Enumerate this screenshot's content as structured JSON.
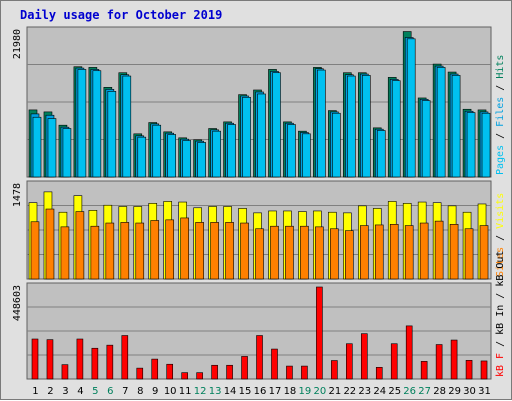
{
  "chart_data": {
    "type": "bar",
    "title": "Daily usage for October 2019",
    "categories": [
      "1",
      "2",
      "3",
      "4",
      "5",
      "6",
      "7",
      "8",
      "9",
      "10",
      "11",
      "12",
      "13",
      "14",
      "15",
      "16",
      "17",
      "18",
      "19",
      "20",
      "21",
      "22",
      "23",
      "24",
      "25",
      "26",
      "27",
      "28",
      "29",
      "30",
      "31"
    ],
    "weekend_days": [
      "5",
      "6",
      "12",
      "13",
      "19",
      "20",
      "26",
      "27"
    ],
    "panels": [
      {
        "id": "hits",
        "ymax_label": "21980",
        "ymax": 21980,
        "y_axis_labels": [
          "Pages",
          "Files",
          "Hits"
        ],
        "series": [
          {
            "name": "Hits",
            "color": "#00805c",
            "values": [
              10100,
              9800,
              7800,
              16600,
              16500,
              13500,
              15700,
              6500,
              8200,
              6800,
              5900,
              5600,
              7300,
              8300,
              12400,
              13100,
              16200,
              8300,
              6900,
              16500,
              10000,
              15700,
              15700,
              7400,
              15000,
              21900,
              11900,
              17000,
              15800,
              10200,
              10100
            ]
          },
          {
            "name": "Files",
            "color": "#00a0e0",
            "values": [
              9500,
              9300,
              7500,
              16400,
              16200,
              13200,
              15400,
              6200,
              8000,
              6600,
              5700,
              5400,
              7100,
              8100,
              12200,
              12800,
              15900,
              8100,
              6700,
              16300,
              9800,
              15400,
              15500,
              7200,
              14700,
              21000,
              11700,
              16700,
              15500,
              9900,
              9800
            ]
          },
          {
            "name": "Pages",
            "color": "#00c0f0",
            "values": [
              9000,
              8800,
              7300,
              16200,
              16000,
              12900,
              15200,
              6000,
              7800,
              6400,
              5500,
              5200,
              6900,
              7900,
              12000,
              12500,
              15700,
              7900,
              6500,
              16100,
              9600,
              15200,
              15300,
              7000,
              14500,
              20800,
              11500,
              16500,
              15300,
              9700,
              9600
            ]
          }
        ]
      },
      {
        "id": "visits",
        "ymax_label": "1478",
        "ymax": 1478,
        "y_axis_labels": [
          "Sites",
          "Visits"
        ],
        "series": [
          {
            "name": "Visits",
            "color": "#ffff00",
            "values": [
              1200,
              1370,
              1050,
              1310,
              1080,
              1160,
              1140,
              1140,
              1190,
              1220,
              1210,
              1120,
              1140,
              1140,
              1110,
              1040,
              1070,
              1070,
              1060,
              1070,
              1050,
              1040,
              1150,
              1110,
              1220,
              1190,
              1210,
              1200,
              1150,
              1050,
              1180
            ]
          },
          {
            "name": "Sites",
            "color": "#ff8000",
            "values": [
              900,
              1100,
              820,
              1060,
              830,
              880,
              890,
              880,
              920,
              930,
              960,
              890,
              890,
              890,
              880,
              790,
              830,
              830,
              830,
              820,
              790,
              760,
              840,
              850,
              860,
              840,
              880,
              910,
              860,
              790,
              840
            ]
          }
        ]
      },
      {
        "id": "kbytes",
        "ymax_label": "448603",
        "ymax": 448603,
        "y_axis_labels": [
          "kB F",
          "kB In",
          "kB Out"
        ],
        "series": [
          {
            "name": "kB F",
            "color": "#ff0000",
            "values": [
              195000,
              192000,
              70000,
              195000,
              150000,
              165000,
              212000,
              53000,
              97000,
              72000,
              31000,
              31000,
              67000,
              67000,
              110000,
              212000,
              146000,
              63000,
              63000,
              448603,
              90000,
              172000,
              221000,
              57000,
              172000,
              259000,
              86000,
              168000,
              190000,
              91000,
              88000
            ]
          }
        ]
      }
    ]
  },
  "x_label_colors": {
    "weekday": "#000000",
    "weekend": "#00805c"
  }
}
